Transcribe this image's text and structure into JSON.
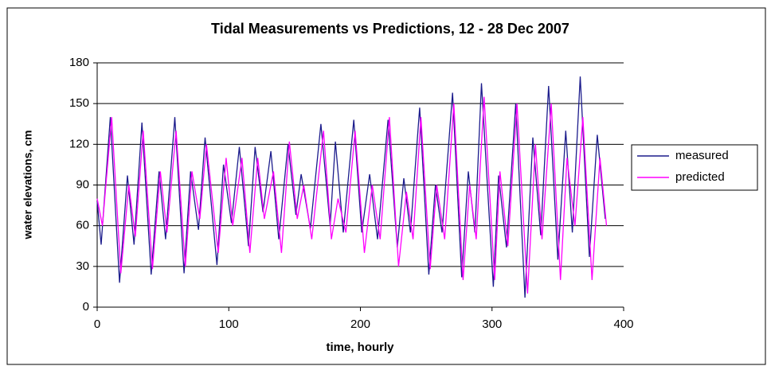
{
  "chart_data": {
    "type": "line",
    "title": "Tidal Measurements vs Predictions, 12 - 28 Dec 2007",
    "x_label": "time, hourly",
    "y_label": "water elevations, cm",
    "xlim": [
      0,
      400
    ],
    "xticks": [
      0,
      100,
      200,
      300,
      400
    ],
    "ylim": [
      0,
      180
    ],
    "yticks": [
      0,
      30,
      60,
      90,
      120,
      150,
      180
    ],
    "grid": true,
    "legend": "right",
    "series": [
      {
        "name": "measured",
        "color": "#1c1c8c",
        "x": [
          0,
          3,
          10,
          17,
          23,
          28,
          34,
          41,
          47,
          52,
          59,
          66,
          71,
          77,
          82,
          91,
          96,
          102,
          108,
          115,
          120,
          126,
          132,
          138,
          145,
          151,
          155,
          162,
          170,
          177,
          181,
          187,
          195,
          201,
          207,
          213,
          221,
          228,
          233,
          238,
          245,
          252,
          257,
          262,
          270,
          277,
          282,
          287,
          292,
          301,
          305,
          311,
          318,
          325,
          331,
          337,
          343,
          350,
          356,
          361,
          367,
          374,
          380,
          386
        ],
        "values": [
          78,
          46,
          140,
          18,
          97,
          46,
          136,
          24,
          100,
          50,
          140,
          25,
          100,
          57,
          125,
          31,
          105,
          62,
          118,
          45,
          118,
          70,
          115,
          50,
          120,
          68,
          98,
          58,
          135,
          60,
          122,
          55,
          138,
          55,
          98,
          50,
          138,
          44,
          95,
          55,
          147,
          24,
          90,
          55,
          158,
          22,
          100,
          55,
          165,
          15,
          97,
          44,
          150,
          7,
          125,
          53,
          163,
          35,
          130,
          55,
          170,
          37,
          127,
          65
        ]
      },
      {
        "name": "predicted",
        "color": "#ff00ff",
        "x": [
          0,
          4,
          11,
          18,
          24,
          29,
          35,
          42,
          48,
          53,
          60,
          67,
          72,
          78,
          83,
          92,
          98,
          103,
          110,
          116,
          122,
          127,
          134,
          140,
          146,
          152,
          157,
          163,
          172,
          178,
          183,
          189,
          196,
          203,
          209,
          215,
          222,
          229,
          235,
          240,
          246,
          253,
          258,
          264,
          271,
          278,
          283,
          288,
          294,
          302,
          306,
          312,
          319,
          327,
          333,
          338,
          345,
          352,
          357,
          363,
          369,
          376,
          382,
          387
        ],
        "values": [
          80,
          60,
          140,
          25,
          90,
          52,
          130,
          28,
          100,
          55,
          130,
          30,
          100,
          65,
          120,
          40,
          110,
          60,
          110,
          40,
          110,
          65,
          100,
          40,
          122,
          65,
          90,
          50,
          130,
          50,
          80,
          55,
          130,
          40,
          90,
          50,
          140,
          30,
          85,
          50,
          140,
          28,
          90,
          50,
          150,
          20,
          90,
          50,
          155,
          20,
          100,
          45,
          150,
          10,
          120,
          50,
          150,
          20,
          110,
          60,
          140,
          20,
          110,
          60
        ]
      }
    ]
  }
}
